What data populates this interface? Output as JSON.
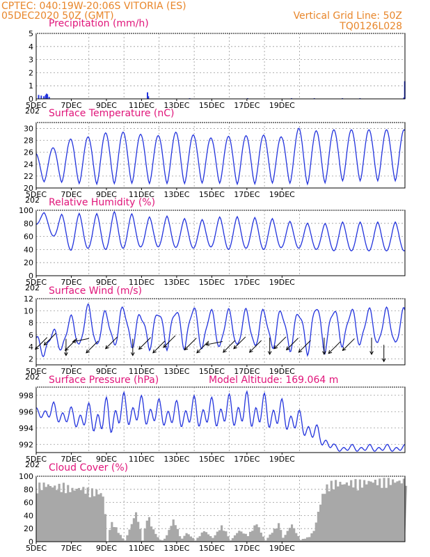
{
  "header": {
    "left_line1": "CPTEC:   040:19W-20:06S   VITORIA (ES)",
    "left_line2": "05DEC2020 50Z (GMT)",
    "right_line1": "Vertical Grid Line: 50Z",
    "right_line2": "TQ0126L028"
  },
  "colors": {
    "series": "#2233dd",
    "header": "#e8862a",
    "title": "#e0157a",
    "cloud": "#a8a8a8"
  },
  "x_ticks": [
    "5DEC",
    "7DEC",
    "9DEC",
    "11DEC",
    "13DEC",
    "15DEC",
    "17DEC",
    "19DEC"
  ],
  "x_sub": [
    "202",
    "202",
    "202",
    "202",
    "202",
    "202"
  ],
  "chart_data": [
    {
      "type": "bar",
      "title": "Precipitation  (mm/h)",
      "ylim": [
        0,
        5
      ],
      "yticks": [
        "0",
        "1",
        "2",
        "3",
        "4",
        "5"
      ],
      "x_unit": "days since 5DEC",
      "x": [
        0.1,
        0.25,
        0.4,
        0.5,
        0.55,
        0.6,
        0.7,
        6.3,
        6.35,
        8.7,
        12.0,
        14.5,
        15.8,
        17.4,
        18.4,
        20.9,
        20.95
      ],
      "values": [
        0.3,
        0.25,
        0.2,
        0.3,
        0.4,
        0.35,
        0.15,
        0.5,
        0.2,
        0.05,
        0.05,
        0.05,
        0.05,
        0.05,
        0.05,
        0.1,
        1.35
      ]
    },
    {
      "type": "line",
      "title": "Surface Temperature (nC)",
      "ylim": [
        20,
        31
      ],
      "yticks": [
        "20",
        "22",
        "24",
        "26",
        "28",
        "30"
      ],
      "min": [
        21.0,
        21.1,
        20.8,
        20.7,
        20.6,
        20.9,
        20.7,
        20.8,
        20.7,
        20.8,
        20.9,
        20.7,
        20.6,
        20.8,
        20.9,
        20.7,
        20.6,
        21.2
      ],
      "max": [
        25.9,
        26.8,
        28.3,
        28.6,
        29.3,
        29.4,
        29.0,
        28.8,
        29.4,
        28.9,
        28.4,
        28.7,
        28.8,
        28.9,
        28.6,
        30.1,
        29.6,
        29.8
      ]
    },
    {
      "type": "line",
      "title": "Relative Humidity  (%)",
      "ylim": [
        0,
        100
      ],
      "yticks": [
        "0",
        "20",
        "40",
        "60",
        "80",
        "100"
      ],
      "min": [
        78,
        60,
        38,
        42,
        40,
        42,
        44,
        44,
        43,
        42,
        44,
        40,
        42,
        40,
        43,
        42,
        40,
        38
      ],
      "max": [
        100,
        92,
        96,
        94,
        96,
        100,
        88,
        92,
        90,
        84,
        88,
        92,
        88,
        90,
        84,
        82,
        78,
        82
      ]
    },
    {
      "type": "line",
      "title": "Surface Wind  (m/s)",
      "ylim": [
        1,
        12
      ],
      "yticks": [
        "2",
        "4",
        "6",
        "8",
        "10",
        "12"
      ],
      "min": [
        2.5,
        3.0,
        4.0,
        3.8,
        4.0,
        4.2,
        3.8,
        4.0,
        4.0,
        3.8,
        3.6,
        3.8,
        3.8,
        3.8,
        3.6,
        3.4,
        2.8,
        4.2
      ],
      "max": [
        5.5,
        6.5,
        8.8,
        10.6,
        9.4,
        10.4,
        9.2,
        9.8,
        10.0,
        10.4,
        9.8,
        9.8,
        9.8,
        9.8,
        9.8,
        9.6,
        10.8,
        10.0
      ]
    },
    {
      "type": "line",
      "title": "Surface Pressure (hPa)",
      "annotation": "Model Altitude: 169.064 m",
      "ylim": [
        991,
        999
      ],
      "yticks": [
        "992",
        "994",
        "996",
        "998"
      ],
      "min": [
        995.2,
        994.5,
        993.8,
        993.2,
        992.2,
        993.6,
        993.8,
        993.8,
        993.5,
        993.5,
        993.5,
        993.6,
        993.4,
        993.3,
        993.3,
        992.9,
        991.8,
        991.0
      ],
      "max": [
        996.5,
        997.2,
        996.6,
        997.1,
        997.8,
        998.4,
        998.0,
        997.6,
        997.4,
        998.0,
        997.8,
        998.2,
        998.5,
        998.3,
        997.6,
        996.2,
        994.4,
        992.0
      ]
    },
    {
      "type": "bar",
      "title": "Cloud Cover  (%)",
      "ylim": [
        0,
        100
      ],
      "yticks": [
        "0",
        "20",
        "40",
        "60",
        "80",
        "100"
      ],
      "profile": [
        [
          0,
          90
        ],
        [
          0.5,
          92
        ],
        [
          1,
          88
        ],
        [
          1.5,
          90
        ],
        [
          2,
          84
        ],
        [
          2.5,
          86
        ],
        [
          3,
          82
        ],
        [
          3.5,
          80
        ],
        [
          3.8,
          72
        ],
        [
          4,
          0
        ],
        [
          4.2,
          32
        ],
        [
          4.5,
          22
        ],
        [
          4.8,
          8
        ],
        [
          5,
          2
        ],
        [
          5.4,
          30
        ],
        [
          5.6,
          48
        ],
        [
          5.8,
          30
        ],
        [
          6,
          2
        ],
        [
          6.3,
          45
        ],
        [
          6.5,
          26
        ],
        [
          6.8,
          10
        ],
        [
          7,
          3
        ],
        [
          7.2,
          2
        ],
        [
          7.5,
          18
        ],
        [
          7.7,
          36
        ],
        [
          7.9,
          28
        ],
        [
          8.2,
          3
        ],
        [
          8.5,
          14
        ],
        [
          8.8,
          8
        ],
        [
          9,
          2
        ],
        [
          9.5,
          18
        ],
        [
          10,
          6
        ],
        [
          10.5,
          25
        ],
        [
          10.8,
          14
        ],
        [
          11,
          2
        ],
        [
          11.5,
          18
        ],
        [
          12,
          10
        ],
        [
          12.5,
          30
        ],
        [
          12.8,
          12
        ],
        [
          13,
          2
        ],
        [
          13.5,
          20
        ],
        [
          13.8,
          30
        ],
        [
          14,
          6
        ],
        [
          14.5,
          28
        ],
        [
          14.8,
          12
        ],
        [
          15,
          3
        ],
        [
          15.5,
          8
        ],
        [
          15.8,
          20
        ],
        [
          16,
          48
        ],
        [
          16.3,
          80
        ],
        [
          16.6,
          92
        ],
        [
          17,
          95
        ],
        [
          17.5,
          93
        ],
        [
          18,
          96
        ],
        [
          18.5,
          95
        ],
        [
          19,
          97
        ],
        [
          19.5,
          97
        ],
        [
          20,
          98
        ],
        [
          20.5,
          97
        ],
        [
          21,
          98
        ]
      ]
    }
  ],
  "wind_arrows": [
    {
      "x": 0.4,
      "y": 4.9,
      "dir": "sw"
    },
    {
      "x": 0.9,
      "y": 5.6,
      "dir": "sw"
    },
    {
      "x": 1.7,
      "y": 4.4,
      "dir": "s"
    },
    {
      "x": 2.1,
      "y": 4.7,
      "dir": "sw"
    },
    {
      "x": 2.7,
      "y": 5.2,
      "dir": "w"
    },
    {
      "x": 3.3,
      "y": 4.3,
      "dir": "sw"
    },
    {
      "x": 4.4,
      "y": 5.0,
      "dir": "sw"
    },
    {
      "x": 5.5,
      "y": 4.4,
      "dir": "s"
    },
    {
      "x": 6.3,
      "y": 4.9,
      "dir": "sw"
    },
    {
      "x": 7.1,
      "y": 4.3,
      "dir": "sw"
    },
    {
      "x": 7.7,
      "y": 5.2,
      "dir": "sw"
    },
    {
      "x": 8.9,
      "y": 4.8,
      "dir": "sw"
    },
    {
      "x": 9.6,
      "y": 4.3,
      "dir": "sw"
    },
    {
      "x": 10.3,
      "y": 4.7,
      "dir": "w"
    },
    {
      "x": 11.1,
      "y": 4.4,
      "dir": "sw"
    },
    {
      "x": 11.7,
      "y": 5.0,
      "dir": "sw"
    },
    {
      "x": 12.6,
      "y": 4.4,
      "dir": "sw"
    },
    {
      "x": 13.3,
      "y": 4.6,
      "dir": "s"
    },
    {
      "x": 14.0,
      "y": 5.0,
      "dir": "sw"
    },
    {
      "x": 14.7,
      "y": 4.8,
      "dir": "sw"
    },
    {
      "x": 15.4,
      "y": 4.4,
      "dir": "sw"
    },
    {
      "x": 16.4,
      "y": 4.6,
      "dir": "s"
    },
    {
      "x": 17.1,
      "y": 4.2,
      "dir": "sw"
    },
    {
      "x": 17.9,
      "y": 4.7,
      "dir": "sw"
    },
    {
      "x": 19.1,
      "y": 4.6,
      "dir": "s"
    },
    {
      "x": 19.8,
      "y": 3.4,
      "dir": "s"
    }
  ]
}
